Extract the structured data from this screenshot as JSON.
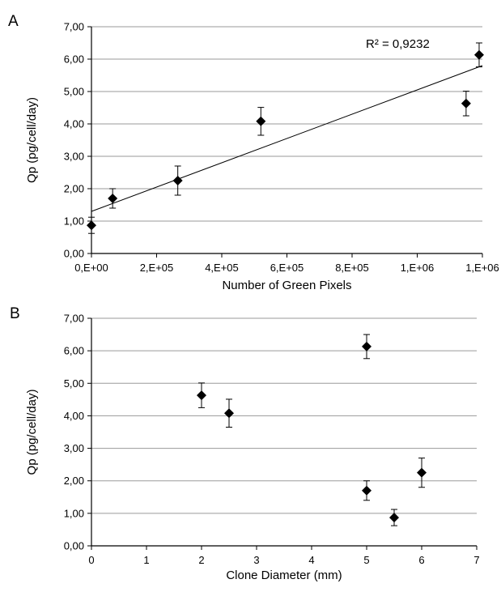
{
  "chart_data": [
    {
      "type": "scatter",
      "panel_label": "A",
      "xlabel": "Number of Green Pixels",
      "ylabel": "Qp (pg/cell/day)",
      "xlim": [
        0,
        1200000
      ],
      "ylim": [
        0,
        7
      ],
      "x_ticks": [
        0,
        200000,
        400000,
        600000,
        800000,
        1000000,
        1200000
      ],
      "x_tick_labels": [
        "0,E+00",
        "2,E+05",
        "4,E+05",
        "6,E+05",
        "8,E+05",
        "1,E+06",
        "1,E+06"
      ],
      "y_ticks": [
        0,
        1,
        2,
        3,
        4,
        5,
        6,
        7
      ],
      "y_tick_labels": [
        "0,00",
        "1,00",
        "2,00",
        "3,00",
        "4,00",
        "5,00",
        "6,00",
        "7,00"
      ],
      "grid": "horizontal",
      "series": [
        {
          "x": [
            0,
            65000,
            265000,
            520000,
            1150000,
            1190000
          ],
          "y": [
            0.87,
            1.7,
            2.25,
            4.08,
            4.63,
            6.13
          ],
          "y_err": [
            0.25,
            0.3,
            0.45,
            0.43,
            0.38,
            0.37
          ]
        }
      ],
      "trendline": {
        "x": [
          0,
          1200000
        ],
        "y": [
          1.3,
          5.8
        ]
      },
      "annotation": "R² = 0,9232"
    },
    {
      "type": "scatter",
      "panel_label": "B",
      "xlabel": "Clone Diameter (mm)",
      "ylabel": "Qp (pg/cell/day)",
      "xlim": [
        0,
        7
      ],
      "ylim": [
        0,
        7
      ],
      "x_ticks": [
        0,
        1,
        2,
        3,
        4,
        5,
        6,
        7
      ],
      "x_tick_labels": [
        "0",
        "1",
        "2",
        "3",
        "4",
        "5",
        "6",
        "7"
      ],
      "y_ticks": [
        0,
        1,
        2,
        3,
        4,
        5,
        6,
        7
      ],
      "y_tick_labels": [
        "0,00",
        "1,00",
        "2,00",
        "3,00",
        "4,00",
        "5,00",
        "6,00",
        "7,00"
      ],
      "grid": "horizontal",
      "series": [
        {
          "x": [
            2,
            2.5,
            5,
            5,
            5.5,
            6
          ],
          "y": [
            4.63,
            4.08,
            6.13,
            1.7,
            0.87,
            2.25
          ],
          "y_err": [
            0.38,
            0.43,
            0.37,
            0.3,
            0.25,
            0.45
          ]
        }
      ]
    }
  ]
}
